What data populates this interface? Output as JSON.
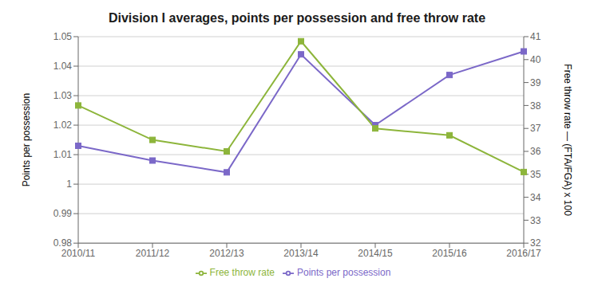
{
  "chart_data": {
    "type": "line",
    "title": "Division I averages, points per possession and free throw rate",
    "categories": [
      "2010/11",
      "2011/12",
      "2012/13",
      "2013/14",
      "2014/15",
      "2015/16",
      "2016/17"
    ],
    "series": [
      {
        "name": "Points per possession",
        "color": "#7B68C8",
        "values": [
          1.013,
          1.008,
          1.004,
          1.044,
          1.02,
          1.037,
          1.045
        ],
        "marker": "square"
      },
      {
        "name": "Free throw rate",
        "color": "#8db53b",
        "values": [
          38.0,
          36.5,
          36.0,
          40.8,
          37.0,
          36.7,
          35.1
        ],
        "marker": "square",
        "axis": "y2"
      }
    ],
    "ylim": [
      0.98,
      1.05
    ],
    "yticks": [
      0.98,
      0.99,
      1,
      1.01,
      1.02,
      1.03,
      1.04,
      1.05
    ],
    "y2lim": [
      32,
      41
    ],
    "y2ticks": [
      32,
      33,
      34,
      35,
      36,
      37,
      38,
      39,
      40,
      41
    ],
    "ylabel": "Points per possession",
    "y2label": "Free throw rate — (FTA/FGA) x 100",
    "grid": true,
    "legend": "bottom"
  }
}
